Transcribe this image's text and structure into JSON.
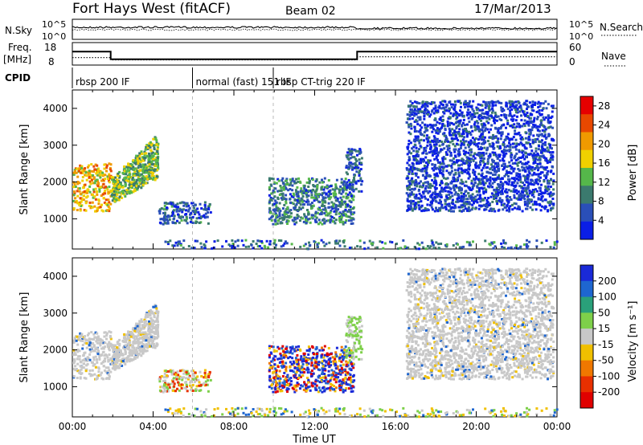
{
  "chart_data": {
    "type": "heatmap",
    "title": "Fort Hays West (fitACF)",
    "beam": "Beam 02",
    "date": "17/Mar/2013",
    "time_axis": {
      "label": "Time UT",
      "range_hours": [
        0,
        24
      ],
      "ticks": [
        "00:00",
        "04:00",
        "08:00",
        "12:00",
        "16:00",
        "20:00",
        "00:00"
      ]
    },
    "panels": {
      "noise": {
        "left_label": "N.Sky",
        "right_label": "N.Search",
        "left_ticks": [
          "10^5",
          "10^0"
        ],
        "right_ticks": [
          "10^5",
          "10^0"
        ]
      },
      "freq": {
        "left_label": "Freq.",
        "left_unit": "[MHz]",
        "left_ticks": [
          "18",
          "8"
        ],
        "right_label": "Nave",
        "right_ticks": [
          "60",
          "0"
        ],
        "freq_series": [
          {
            "t": 0.0,
            "f": 14.0
          },
          {
            "t": 1.9,
            "f": 14.0
          },
          {
            "t": 1.9,
            "f": 10.6
          },
          {
            "t": 14.1,
            "f": 10.6
          },
          {
            "t": 14.1,
            "f": 14.0
          },
          {
            "t": 24.0,
            "f": 14.0
          }
        ],
        "nave_series": [
          {
            "t": 0.0,
            "n": 20
          },
          {
            "t": 1.9,
            "n": 20
          },
          {
            "t": 1.9,
            "n": 14
          },
          {
            "t": 14.1,
            "n": 14
          },
          {
            "t": 14.1,
            "n": 22
          },
          {
            "t": 24.0,
            "n": 22
          }
        ]
      },
      "cpid": {
        "label": "CPID",
        "segments": [
          {
            "start": 0.0,
            "text": "rbsp 200 IF"
          },
          {
            "start": 5.95,
            "text": "normal (fast) 151 IF"
          },
          {
            "start": 9.95,
            "text": "rbsp CT-trig 220 IF"
          }
        ]
      },
      "power": {
        "ylabel": "Slant Range [km]",
        "yrange": [
          180,
          4500
        ],
        "yticks": [
          1000,
          2000,
          3000,
          4000
        ],
        "colorbar_label": "Power [dB]",
        "colorbar_ticks": [
          "4",
          "8",
          "12",
          "16",
          "20",
          "24",
          "28"
        ],
        "colorbar_range": [
          0,
          30
        ],
        "colors": [
          "#0a1ee6",
          "#2a4fb8",
          "#3b7a6e",
          "#55b74a",
          "#f0d000",
          "#f09a00",
          "#e84800",
          "#e60000"
        ]
      },
      "velocity": {
        "ylabel": "Slant Range [km]",
        "yrange": [
          180,
          4500
        ],
        "yticks": [
          1000,
          2000,
          3000,
          4000
        ],
        "colorbar_label": "Velocity [m s⁻¹]",
        "colorbar_ticks": [
          "200",
          "100",
          "50",
          "15",
          "-15",
          "-50",
          "-100",
          "-200"
        ],
        "colors": [
          "#1a2ad8",
          "#1e66d0",
          "#2aa07a",
          "#7ed04a",
          "#c8c8c8",
          "#f0c000",
          "#f07800",
          "#e83000",
          "#e00000"
        ]
      }
    },
    "echo_regions": [
      {
        "t0": 0.0,
        "t1": 1.9,
        "r0": 1200,
        "r1": 2500,
        "pw": 20,
        "vel": "grey"
      },
      {
        "t0": 1.9,
        "t1": 4.2,
        "r0": 1400,
        "r1": 3300,
        "pw": 14,
        "vel": "grey"
      },
      {
        "t0": 4.2,
        "t1": 6.8,
        "r0": 850,
        "r1": 1450,
        "pw": 7,
        "vel": "mixed"
      },
      {
        "t0": 9.7,
        "t1": 13.9,
        "r0": 850,
        "r1": 2100,
        "pw": 9,
        "vel": "strong"
      },
      {
        "t0": 13.5,
        "t1": 14.3,
        "r0": 1700,
        "r1": 2900,
        "pw": 6,
        "vel": "green"
      },
      {
        "t0": 16.5,
        "t1": 23.8,
        "r0": 1200,
        "r1": 4200,
        "pw": 4,
        "vel": "grey"
      },
      {
        "t0": 4.5,
        "t1": 24.0,
        "r0": 180,
        "r1": 420,
        "pw": 8,
        "vel": "ground"
      }
    ]
  }
}
